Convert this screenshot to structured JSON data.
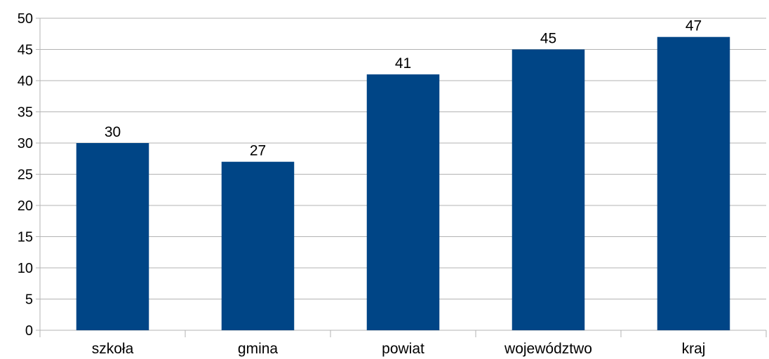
{
  "chart_data": {
    "type": "bar",
    "categories": [
      "szkoła",
      "gmina",
      "powiat",
      "województwo",
      "kraj"
    ],
    "values": [
      30,
      27,
      41,
      45,
      47
    ],
    "data_labels": [
      "30",
      "27",
      "41",
      "45",
      "47"
    ],
    "y_ticks": [
      "0",
      "5",
      "10",
      "15",
      "20",
      "25",
      "30",
      "35",
      "40",
      "45",
      "50"
    ],
    "ylim": [
      0,
      50
    ],
    "y_step": 5,
    "grid": true,
    "legend": "none",
    "title": "",
    "xlabel": "",
    "ylabel": ""
  },
  "colors": {
    "bar": "#004586",
    "grid": "#b3b3b3",
    "axis": "#b3b3b3",
    "text": "#000000"
  }
}
